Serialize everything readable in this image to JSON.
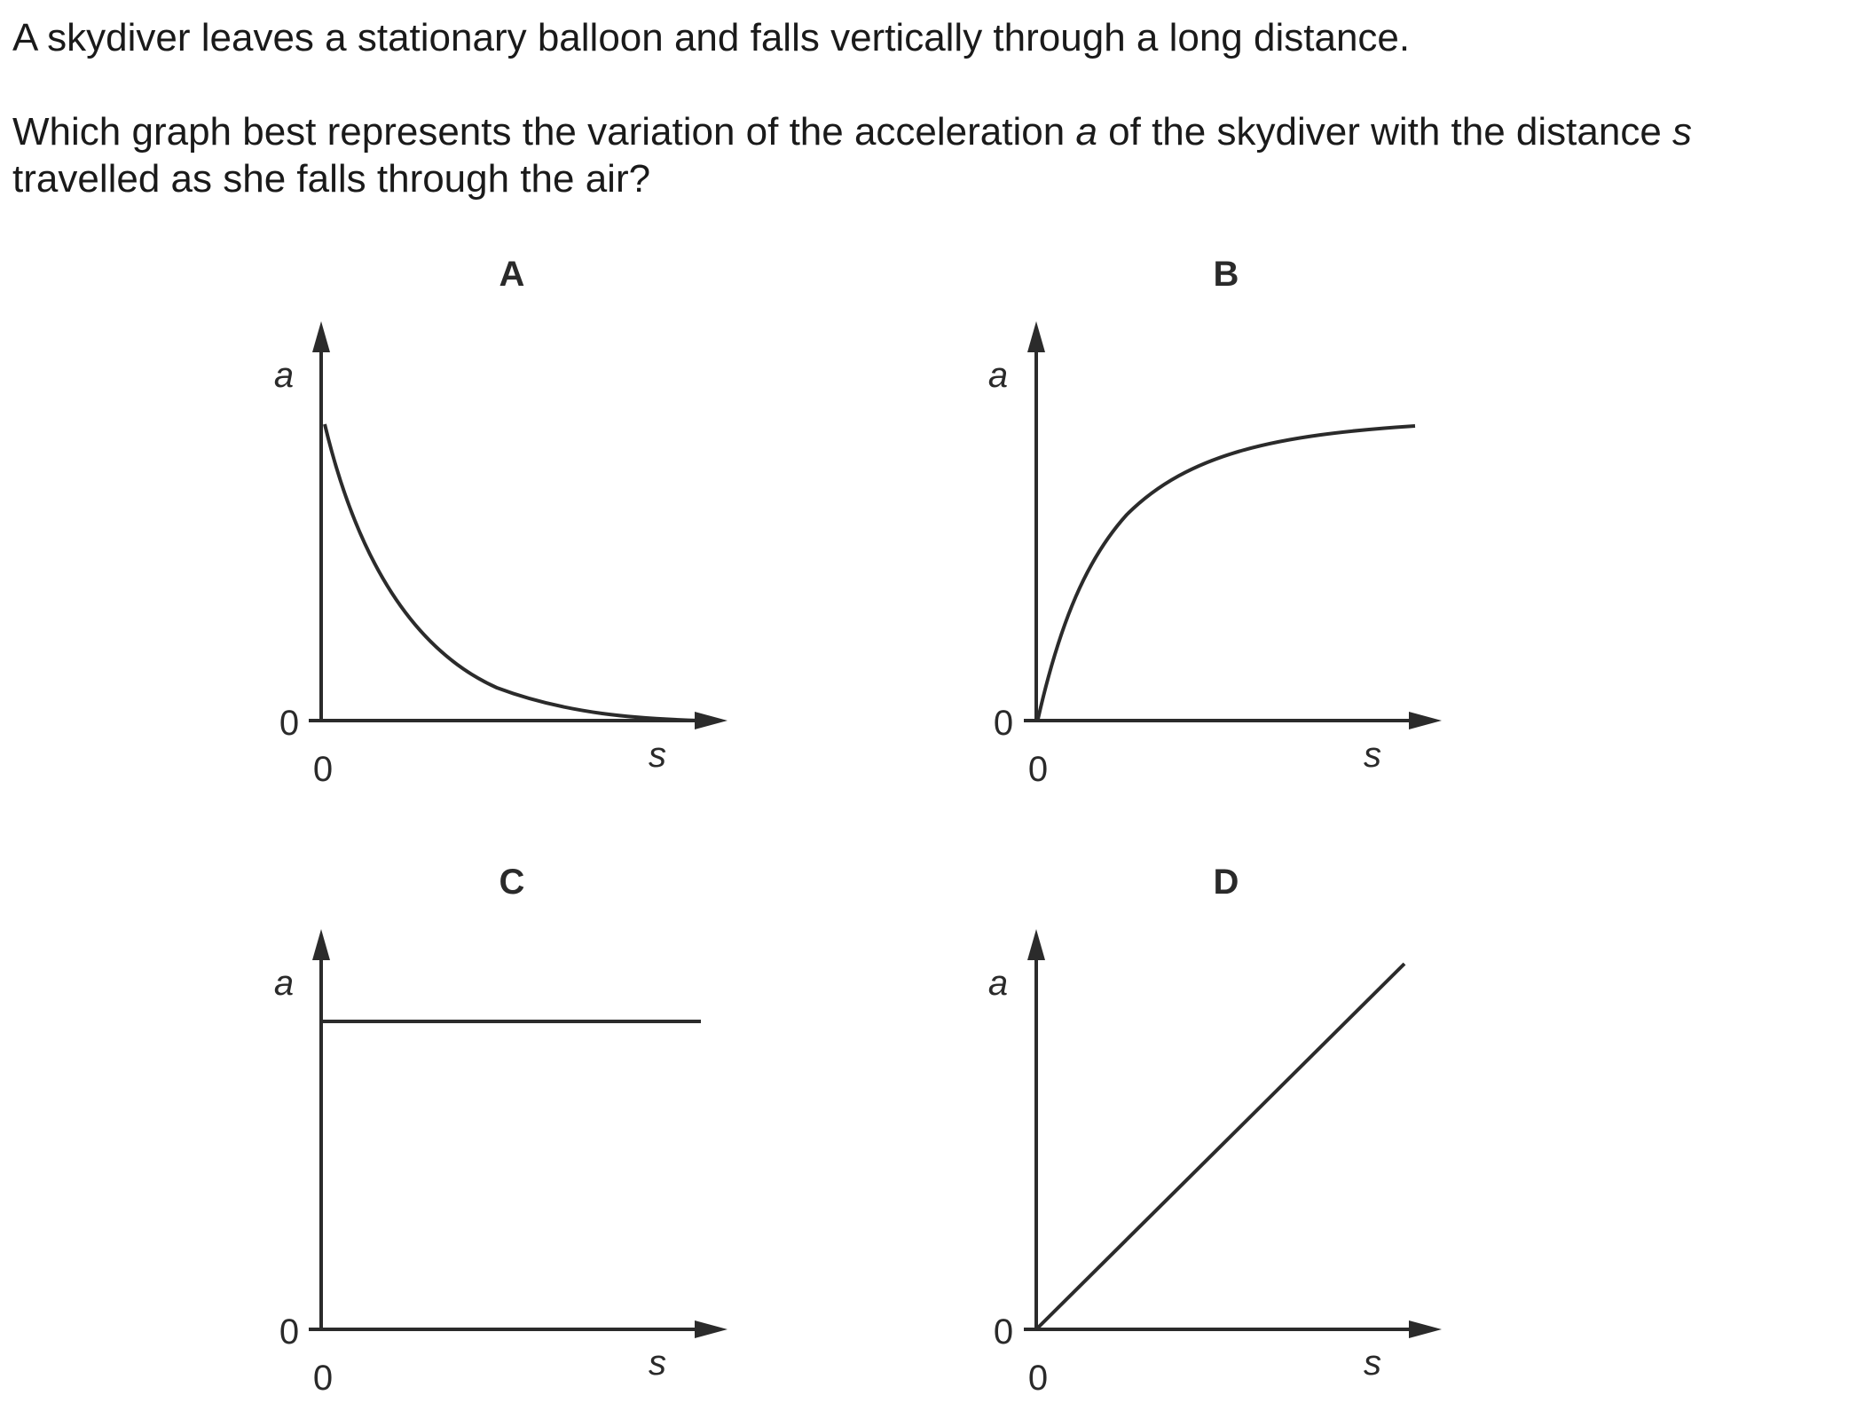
{
  "question": {
    "line1": "A skydiver leaves a stationary balloon and falls vertically through a long distance.",
    "line2_a": "Which graph best represents the variation of the acceleration ",
    "line2_var": "a",
    "line2_b": " of the skydiver with the distance ",
    "line2_var2": "s",
    "line3": "travelled as she falls through the air?"
  },
  "graphs": [
    {
      "letter": "A",
      "y_label": "a",
      "x_label": "s",
      "y_origin": "0",
      "x_origin": "0",
      "curve": "exponential-decay"
    },
    {
      "letter": "B",
      "y_label": "a",
      "x_label": "s",
      "y_origin": "0",
      "x_origin": "0",
      "curve": "rising-to-asymptote"
    },
    {
      "letter": "C",
      "y_label": "a",
      "x_label": "s",
      "y_origin": "0",
      "x_origin": "0",
      "curve": "constant"
    },
    {
      "letter": "D",
      "y_label": "a",
      "x_label": "s",
      "y_origin": "0",
      "x_origin": "0",
      "curve": "linear-increase"
    }
  ],
  "colors": {
    "line": "#2b2b2b",
    "text": "#1a1a1a"
  }
}
